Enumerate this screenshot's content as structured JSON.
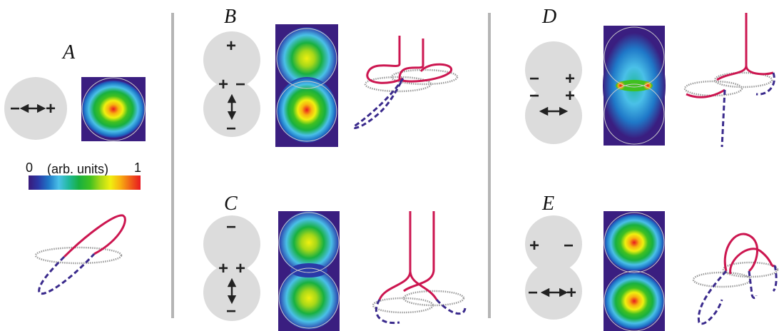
{
  "panels": {
    "A": {
      "label": "A",
      "signs": [
        "−",
        "+"
      ]
    },
    "B": {
      "label": "B",
      "signs": [
        "+",
        "+",
        "−",
        "−"
      ]
    },
    "C": {
      "label": "C",
      "signs": [
        "−",
        "+",
        "+",
        "−"
      ]
    },
    "D": {
      "label": "D",
      "signs": [
        "−",
        "+",
        "−",
        "+"
      ]
    },
    "E": {
      "label": "E",
      "signs": [
        "+",
        "−",
        "−",
        "+"
      ]
    }
  },
  "colorbar": {
    "min_label": "0",
    "max_label": "1",
    "unit_label": "(arb. units)",
    "colors": [
      "#3a1a7a",
      "#2a3aa8",
      "#1f78c8",
      "#4ac0e8",
      "#20b89a",
      "#18b040",
      "#40c020",
      "#a8d818",
      "#f0f010",
      "#f8b010",
      "#f06018",
      "#e81820"
    ]
  },
  "colors": {
    "bar": "#b5b5b5",
    "circle": "#dcdcdc",
    "heat_bg": "#3a1e80",
    "solid_curve": "#cc1650",
    "dashed_curve": "#3a2a8c",
    "ring": "#9a9a9a"
  }
}
